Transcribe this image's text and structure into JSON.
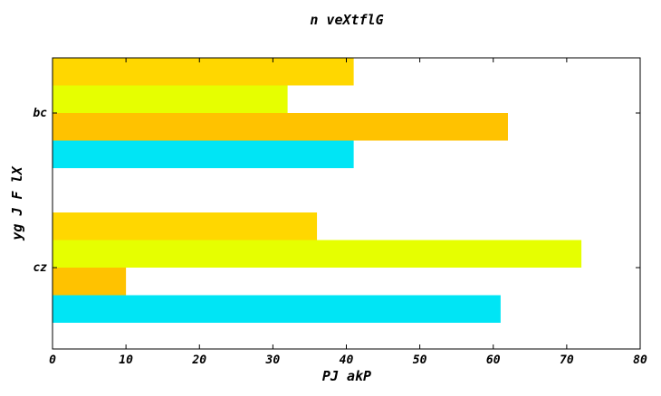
{
  "chart_data": {
    "type": "bar",
    "orientation": "horizontal",
    "title": "n  veXtflG",
    "xlabel": "PJ akP",
    "ylabel": "yg J F lX",
    "categories": [
      "cz",
      "bc"
    ],
    "xlim": [
      0,
      80
    ],
    "xticks": [
      "0",
      "10",
      "20",
      "30",
      "40",
      "50",
      "60",
      "70",
      "80"
    ],
    "grid": false,
    "series": [
      {
        "color": "#00e5f5",
        "values": [
          61,
          41
        ]
      },
      {
        "color": "#ffc200",
        "values": [
          10,
          62
        ]
      },
      {
        "color": "#e6ff00",
        "values": [
          72,
          32
        ]
      },
      {
        "color": "#ffd700",
        "values": [
          36,
          41
        ]
      }
    ]
  }
}
